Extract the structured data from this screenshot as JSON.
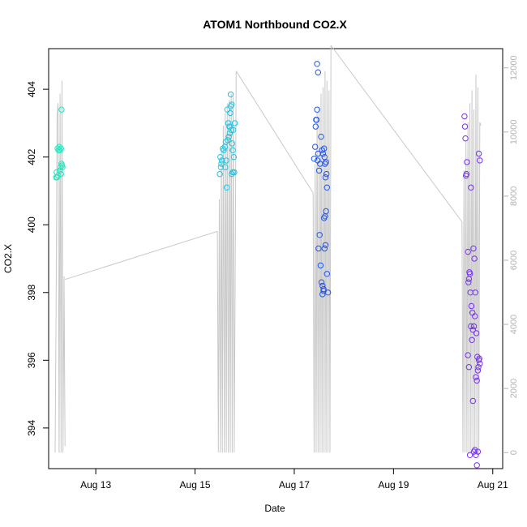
{
  "chart_data": {
    "type": "scatter",
    "title": "ATOM1 Northbound CO2.X",
    "xlabel": "Date",
    "ylabel": "CO2.X",
    "x_ticks": [
      "Aug 13",
      "Aug 15",
      "Aug 17",
      "Aug 19",
      "Aug 21"
    ],
    "x_tick_days": [
      13,
      15,
      17,
      19,
      21
    ],
    "xlim": [
      12.05,
      21.2
    ],
    "y_ticks": [
      394,
      396,
      398,
      400,
      402,
      404
    ],
    "ylim": [
      392.8,
      405.2
    ],
    "y2_ticks": [
      0,
      2000,
      4000,
      6000,
      8000,
      10000,
      12000
    ],
    "y2lim": [
      -500,
      12600
    ],
    "grid": false,
    "colors": {
      "leg1": "#22e8c0",
      "leg2": "#22c4e0",
      "leg3": "#2255ee",
      "leg4": "#7733ee",
      "secondary_line": "#c8c8c8",
      "secondary_axis": "#b3b3b3"
    },
    "series": [
      {
        "color": "#22e8c0",
        "x": [
          12.2,
          12.22,
          12.24,
          12.21,
          12.26,
          12.23,
          12.25,
          12.28,
          12.3,
          12.31,
          12.29,
          12.33,
          12.3,
          12.27,
          12.31,
          12.32
        ],
        "y": [
          401.4,
          401.4,
          401.45,
          401.55,
          402.3,
          402.25,
          402.2,
          402.2,
          402.25,
          401.8,
          401.7,
          401.7,
          401.5,
          401.6,
          403.4,
          401.75
        ]
      },
      {
        "color": "#22c4e0",
        "x": [
          15.5,
          15.52,
          15.54,
          15.51,
          15.53,
          15.56,
          15.58,
          15.6,
          15.62,
          15.64,
          15.61,
          15.63,
          15.66,
          15.68,
          15.7,
          15.65,
          15.67,
          15.72,
          15.74,
          15.71,
          15.69,
          15.73,
          15.75,
          15.76,
          15.78,
          15.8,
          15.77,
          15.79,
          15.74,
          15.76,
          15.72,
          15.7
        ],
        "y": [
          401.5,
          401.7,
          401.9,
          402.0,
          401.8,
          402.25,
          402.2,
          402.3,
          402.45,
          401.1,
          401.7,
          401.9,
          402.5,
          402.6,
          402.7,
          403.4,
          403.0,
          403.5,
          403.55,
          403.3,
          402.9,
          402.8,
          402.4,
          402.2,
          402.0,
          403.0,
          402.8,
          401.55,
          401.5,
          401.55,
          403.85,
          402.9
        ]
      },
      {
        "color": "#2255ee",
        "x": [
          17.4,
          17.42,
          17.44,
          17.46,
          17.48,
          17.43,
          17.45,
          17.47,
          17.5,
          17.52,
          17.49,
          17.51,
          17.53,
          17.55,
          17.57,
          17.59,
          17.6,
          17.62,
          17.64,
          17.66,
          17.63,
          17.65,
          17.61,
          17.58,
          17.56,
          17.54,
          17.6,
          17.62,
          17.64,
          17.66,
          17.68,
          17.57,
          17.59,
          17.61,
          17.63,
          17.46,
          17.48
        ],
        "y": [
          401.95,
          402.3,
          403.1,
          403.4,
          402.1,
          402.9,
          403.1,
          401.9,
          401.6,
          401.8,
          399.3,
          399.7,
          398.8,
          398.3,
          398.2,
          398.05,
          400.2,
          400.25,
          400.4,
          401.1,
          401.4,
          401.5,
          402.0,
          402.1,
          402.2,
          402.6,
          402.25,
          401.8,
          401.85,
          398.55,
          398.0,
          397.95,
          398.1,
          399.3,
          399.4,
          404.75,
          404.5
        ]
      },
      {
        "color": "#7733ee",
        "x": [
          20.43,
          20.45,
          20.47,
          20.44,
          20.46,
          20.48,
          20.5,
          20.52,
          20.54,
          20.51,
          20.53,
          20.55,
          20.57,
          20.59,
          20.56,
          20.58,
          20.6,
          20.62,
          20.64,
          20.61,
          20.63,
          20.65,
          20.67,
          20.69,
          20.66,
          20.68,
          20.7,
          20.72,
          20.74,
          20.71,
          20.73,
          20.6,
          20.62,
          20.64,
          20.66,
          20.68,
          20.7,
          20.72,
          20.74,
          20.5,
          20.52,
          20.54,
          20.56
        ],
        "y": [
          403.2,
          402.55,
          401.5,
          402.9,
          401.45,
          401.85,
          399.2,
          398.4,
          398.55,
          398.3,
          398.6,
          398.0,
          397.6,
          397.4,
          397.0,
          396.6,
          396.9,
          397.0,
          397.3,
          399.3,
          399.0,
          398.0,
          396.8,
          396.1,
          395.5,
          395.4,
          395.7,
          396.0,
          395.9,
          395.8,
          396.05,
          394.8,
          393.3,
          393.35,
          393.2,
          392.9,
          393.3,
          402.1,
          401.9,
          396.15,
          395.8,
          393.2,
          401.1
        ]
      }
    ],
    "secondary": {
      "label": "",
      "segments": [
        {
          "x": [
            12.18,
            12.2,
            12.22,
            12.24,
            12.26,
            12.28,
            12.3,
            12.32,
            12.34,
            12.36,
            12.38
          ],
          "y": [
            0,
            4500,
            10500,
            10900,
            0,
            11200,
            0,
            11600,
            0,
            5500,
            200
          ]
        },
        {
          "x": [
            12.38,
            15.45
          ],
          "y": [
            5400,
            6900
          ]
        },
        {
          "x": [
            15.45,
            15.47,
            15.49,
            15.51,
            15.53,
            15.55,
            15.57,
            15.59,
            15.61,
            15.63,
            15.65,
            15.67,
            15.69,
            15.71,
            15.73,
            15.75,
            15.77,
            15.79,
            15.81,
            15.83
          ],
          "y": [
            6900,
            0,
            7900,
            0,
            9500,
            0,
            10200,
            0,
            10600,
            0,
            10900,
            0,
            11000,
            0,
            11200,
            0,
            11100,
            0,
            5800,
            11900
          ]
        },
        {
          "x": [
            15.83,
            17.38
          ],
          "y": [
            11900,
            8100
          ]
        },
        {
          "x": [
            17.38,
            17.4,
            17.42,
            17.44,
            17.46,
            17.48,
            17.5,
            17.52,
            17.54,
            17.56,
            17.58,
            17.6,
            17.62,
            17.64,
            17.66,
            17.68,
            17.7,
            17.72,
            17.74
          ],
          "y": [
            8100,
            0,
            9000,
            0,
            10600,
            0,
            10800,
            0,
            11200,
            0,
            11400,
            0,
            11900,
            0,
            11600,
            0,
            11300,
            0,
            12700
          ]
        },
        {
          "x": [
            17.74,
            20.38
          ],
          "y": [
            12700,
            7200
          ]
        },
        {
          "x": [
            20.38,
            20.4,
            20.42,
            20.44,
            20.46,
            20.48,
            20.5,
            20.52,
            20.54,
            20.56,
            20.58,
            20.6,
            20.62,
            20.64,
            20.66,
            20.68,
            20.7,
            20.72,
            20.74,
            20.76
          ],
          "y": [
            7200,
            0,
            8800,
            0,
            9700,
            0,
            10300,
            0,
            10900,
            0,
            11300,
            0,
            10700,
            0,
            11800,
            0,
            11400,
            0,
            10300,
            10200
          ]
        }
      ]
    }
  }
}
